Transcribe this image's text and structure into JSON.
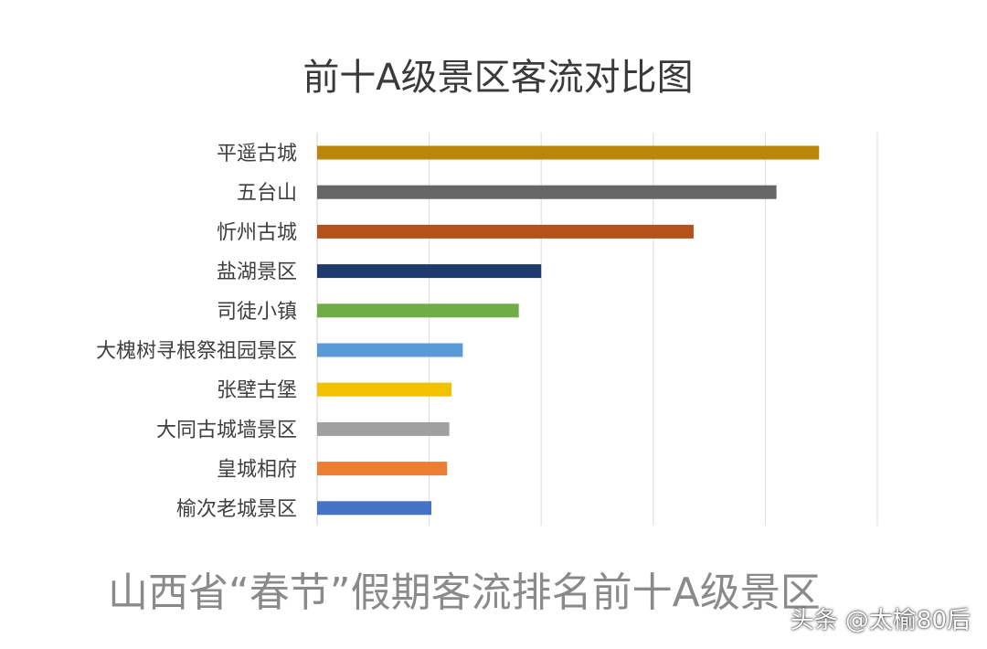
{
  "chart_data": {
    "type": "bar",
    "orientation": "horizontal",
    "title": "前十A级景区客流对比图",
    "categories": [
      "平遥古城",
      "五台山",
      "忻州古城",
      "盐湖景区",
      "司徒小镇",
      "大槐树寻根祭祖园景区",
      "张壁古堡",
      "大同古城墙景区",
      "皇城相府",
      "榆次老城景区"
    ],
    "values": [
      22.4,
      20.5,
      16.8,
      10.0,
      9.0,
      6.5,
      6.0,
      5.9,
      5.8,
      5.1
    ],
    "colors": [
      "#b8860b",
      "#666666",
      "#b5511a",
      "#1f3a6e",
      "#70ad47",
      "#5b9bd5",
      "#f2c200",
      "#a0a0a0",
      "#ed7d31",
      "#4472c4"
    ],
    "xlim": [
      0,
      25
    ],
    "gridlines": "vertical",
    "legend": "none"
  },
  "caption": "山西省“春节”假期客流排名前十A级景区",
  "watermark": "头条 @太榆80后"
}
